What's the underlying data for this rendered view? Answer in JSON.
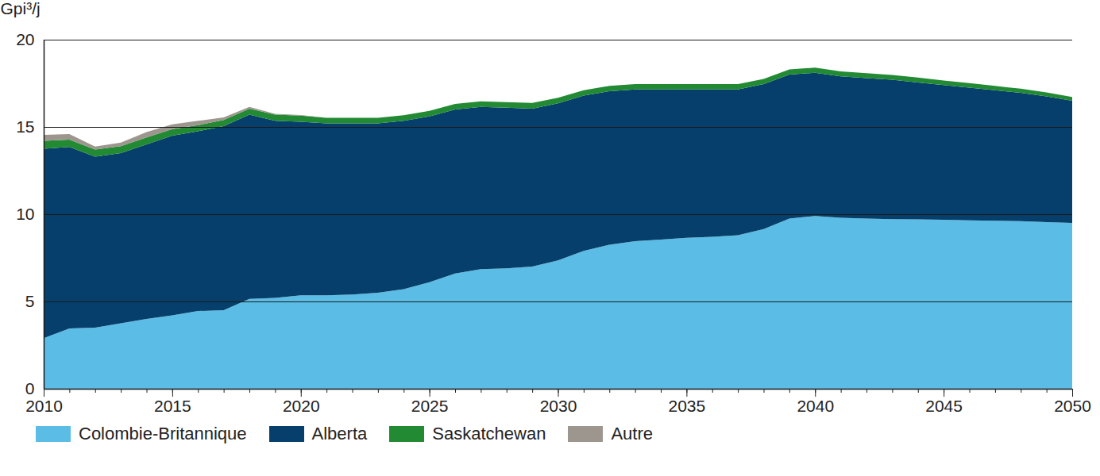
{
  "chart_data": {
    "type": "area",
    "stacked": true,
    "grid": true,
    "legend": "bottom",
    "y_label": "Gpi³/j",
    "x": [
      2010,
      2011,
      2012,
      2013,
      2014,
      2015,
      2016,
      2017,
      2018,
      2019,
      2020,
      2021,
      2022,
      2023,
      2024,
      2025,
      2026,
      2027,
      2028,
      2029,
      2030,
      2031,
      2032,
      2033,
      2034,
      2035,
      2036,
      2037,
      2038,
      2039,
      2040,
      2041,
      2042,
      2043,
      2044,
      2045,
      2046,
      2047,
      2048,
      2049,
      2050
    ],
    "xlim": [
      2010,
      2050
    ],
    "xticks": [
      2010,
      2015,
      2020,
      2025,
      2030,
      2035,
      2040,
      2045,
      2050
    ],
    "ylim": [
      0,
      20
    ],
    "yticks": [
      0,
      5,
      10,
      15,
      20
    ],
    "series": [
      {
        "name": "Colombie-Britannique",
        "color": "#5bbde5",
        "values": [
          2.9,
          3.45,
          3.5,
          3.75,
          4.0,
          4.2,
          4.45,
          4.5,
          5.15,
          5.2,
          5.35,
          5.35,
          5.4,
          5.5,
          5.7,
          6.1,
          6.6,
          6.85,
          6.9,
          7.0,
          7.35,
          7.9,
          8.25,
          8.45,
          8.55,
          8.65,
          8.7,
          8.8,
          9.15,
          9.75,
          9.9,
          9.8,
          9.75,
          9.72,
          9.7,
          9.68,
          9.65,
          9.62,
          9.6,
          9.55,
          9.5
        ]
      },
      {
        "name": "Alberta",
        "color": "#063f6b",
        "values": [
          10.85,
          10.4,
          9.8,
          9.75,
          10.0,
          10.3,
          10.3,
          10.55,
          10.55,
          10.15,
          9.95,
          9.85,
          9.8,
          9.7,
          9.65,
          9.5,
          9.4,
          9.3,
          9.2,
          9.05,
          9.0,
          8.9,
          8.8,
          8.7,
          8.6,
          8.5,
          8.45,
          8.35,
          8.3,
          8.25,
          8.2,
          8.1,
          8.05,
          7.98,
          7.85,
          7.72,
          7.6,
          7.48,
          7.35,
          7.2,
          7.0
        ]
      },
      {
        "name": "Saskatchewan",
        "color": "#238a34",
        "values": [
          0.45,
          0.42,
          0.4,
          0.4,
          0.4,
          0.38,
          0.35,
          0.35,
          0.35,
          0.35,
          0.35,
          0.32,
          0.32,
          0.32,
          0.32,
          0.32,
          0.32,
          0.32,
          0.32,
          0.32,
          0.32,
          0.3,
          0.3,
          0.3,
          0.3,
          0.3,
          0.3,
          0.3,
          0.3,
          0.3,
          0.3,
          0.28,
          0.28,
          0.28,
          0.28,
          0.26,
          0.26,
          0.25,
          0.24,
          0.23,
          0.22
        ]
      },
      {
        "name": "Autre",
        "color": "#9d968e",
        "values": [
          0.35,
          0.32,
          0.18,
          0.2,
          0.3,
          0.27,
          0.25,
          0.15,
          0.1,
          0.05,
          0.03,
          0,
          0,
          0,
          0,
          0,
          0,
          0,
          0,
          0,
          0,
          0,
          0,
          0,
          0,
          0,
          0,
          0,
          0,
          0,
          0,
          0,
          0,
          0,
          0,
          0,
          0,
          0,
          0,
          0,
          0
        ]
      }
    ]
  }
}
